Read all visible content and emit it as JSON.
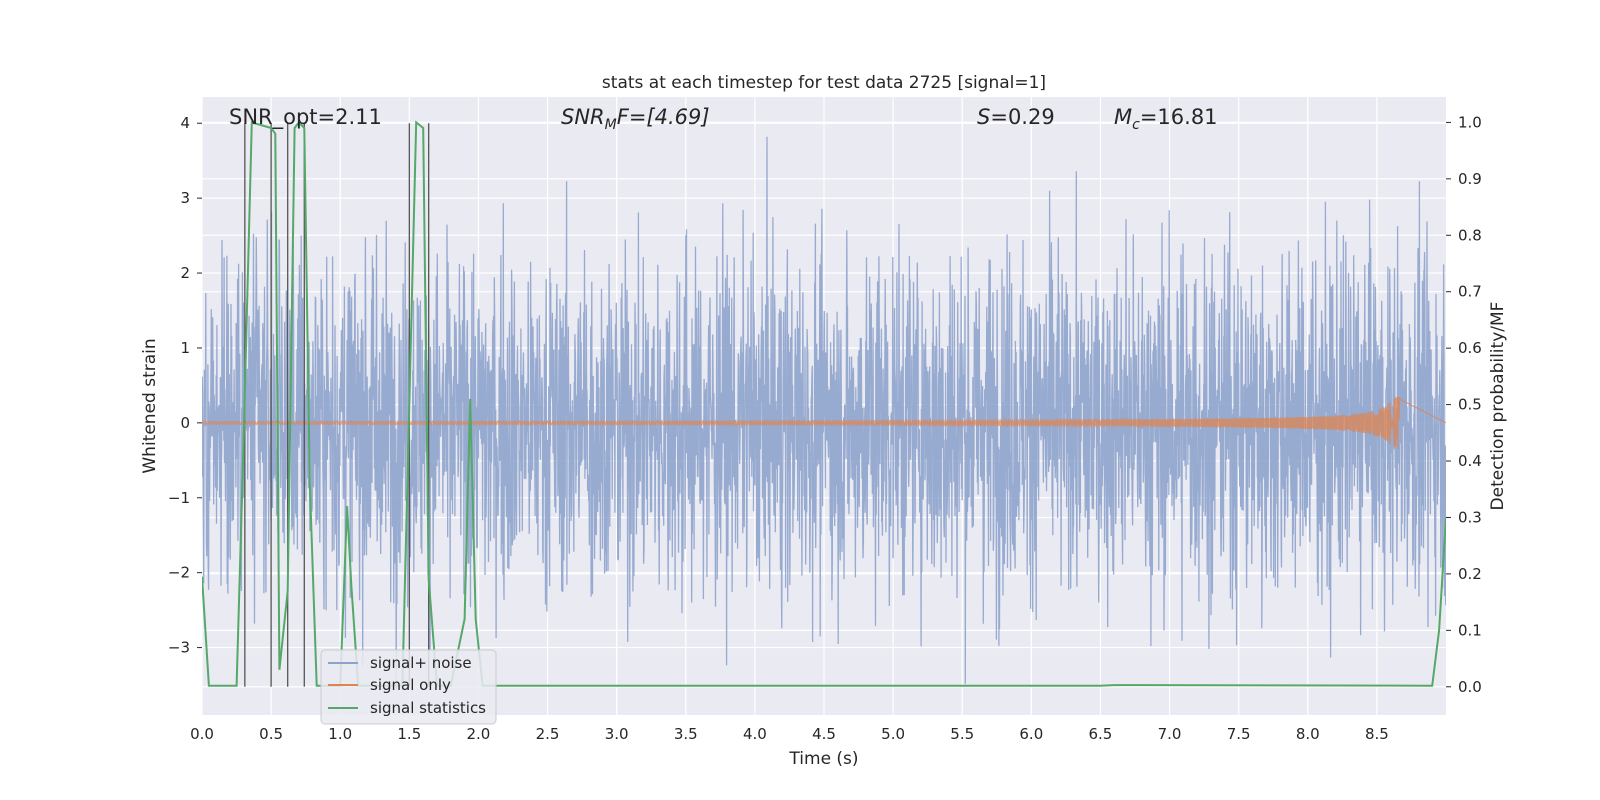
{
  "chart_data": {
    "type": "line",
    "title": "stats at each timestep for test data 2725 [signal=1]",
    "xlabel": "Time (s)",
    "ylabel_left": "Whitened strain",
    "ylabel_right": "Detection probability/MF",
    "xlim": [
      0.0,
      9.0
    ],
    "ylim_left": [
      -3.9,
      4.35
    ],
    "ylim_right": [
      -0.05,
      1.045
    ],
    "x_ticks": [
      "0.0",
      "0.5",
      "1.0",
      "1.5",
      "2.0",
      "2.5",
      "3.0",
      "3.5",
      "4.0",
      "4.5",
      "5.0",
      "5.5",
      "6.0",
      "6.5",
      "7.0",
      "7.5",
      "8.0",
      "8.5"
    ],
    "y_ticks_left": [
      "4",
      "3",
      "2",
      "1",
      "0",
      "−1",
      "−2",
      "−3"
    ],
    "y_ticks_left_values": [
      4,
      3,
      2,
      1,
      0,
      -1,
      -2,
      -3
    ],
    "y_ticks_right": [
      "1.0",
      "0.9",
      "0.8",
      "0.7",
      "0.6",
      "0.5",
      "0.4",
      "0.3",
      "0.2",
      "0.1",
      "0.0"
    ],
    "y_ticks_right_values": [
      1.0,
      0.9,
      0.8,
      0.7,
      0.6,
      0.5,
      0.4,
      0.3,
      0.2,
      0.1,
      0.0
    ],
    "grid": true,
    "legend_position": "lower-left",
    "annotations": {
      "snr_opt": "SNR_opt=2.11",
      "snr_mf_main": "SNR",
      "snr_mf_sub": "M",
      "snr_mf_rest": "F=[4.69]",
      "s_main": "S",
      "s_rest": "=0.29",
      "mc_main": "M",
      "mc_sub": "c",
      "mc_rest": "=16.81"
    },
    "series": [
      {
        "name": "signal+ noise",
        "axis": "left",
        "color": "#8ea3cc",
        "noise_band": {
          "x_range": [
            0.0,
            9.0
          ],
          "typical_amplitude": 1.8,
          "peak_max": 4.05,
          "peak_min": -3.65
        }
      },
      {
        "name": "signal only",
        "axis": "left",
        "color": "#dd8452",
        "chirp": {
          "x_range": [
            0.0,
            8.67
          ],
          "amplitude_start": 0.005,
          "amplitude_peak": 0.35,
          "peak_time": 8.67
        }
      },
      {
        "name": "signal statistics",
        "axis": "right",
        "color": "#55a868",
        "x": [
          0.0,
          0.05,
          0.25,
          0.3,
          0.36,
          0.5,
          0.53,
          0.56,
          0.62,
          0.67,
          0.7,
          0.74,
          0.78,
          0.83,
          0.9,
          1.0,
          1.05,
          1.08,
          1.13,
          1.2,
          1.3,
          1.45,
          1.5,
          1.55,
          1.6,
          1.64,
          1.7,
          1.8,
          1.9,
          1.94,
          1.98,
          2.03,
          2.1,
          6.5,
          6.6,
          8.9,
          8.95,
          9.0
        ],
        "y": [
          0.195,
          0.002,
          0.002,
          0.43,
          1.0,
          0.99,
          0.98,
          0.03,
          0.17,
          0.99,
          1.0,
          0.99,
          0.36,
          0.002,
          0.002,
          0.002,
          0.32,
          0.18,
          0.002,
          0.002,
          0.002,
          0.002,
          0.5,
          1.0,
          0.99,
          0.19,
          0.002,
          0.002,
          0.12,
          0.51,
          0.12,
          0.002,
          0.002,
          0.002,
          0.003,
          0.002,
          0.1,
          0.3
        ]
      }
    ],
    "vertical_markers": [
      0.31,
      0.5,
      0.62,
      0.74,
      1.5,
      1.64
    ]
  }
}
